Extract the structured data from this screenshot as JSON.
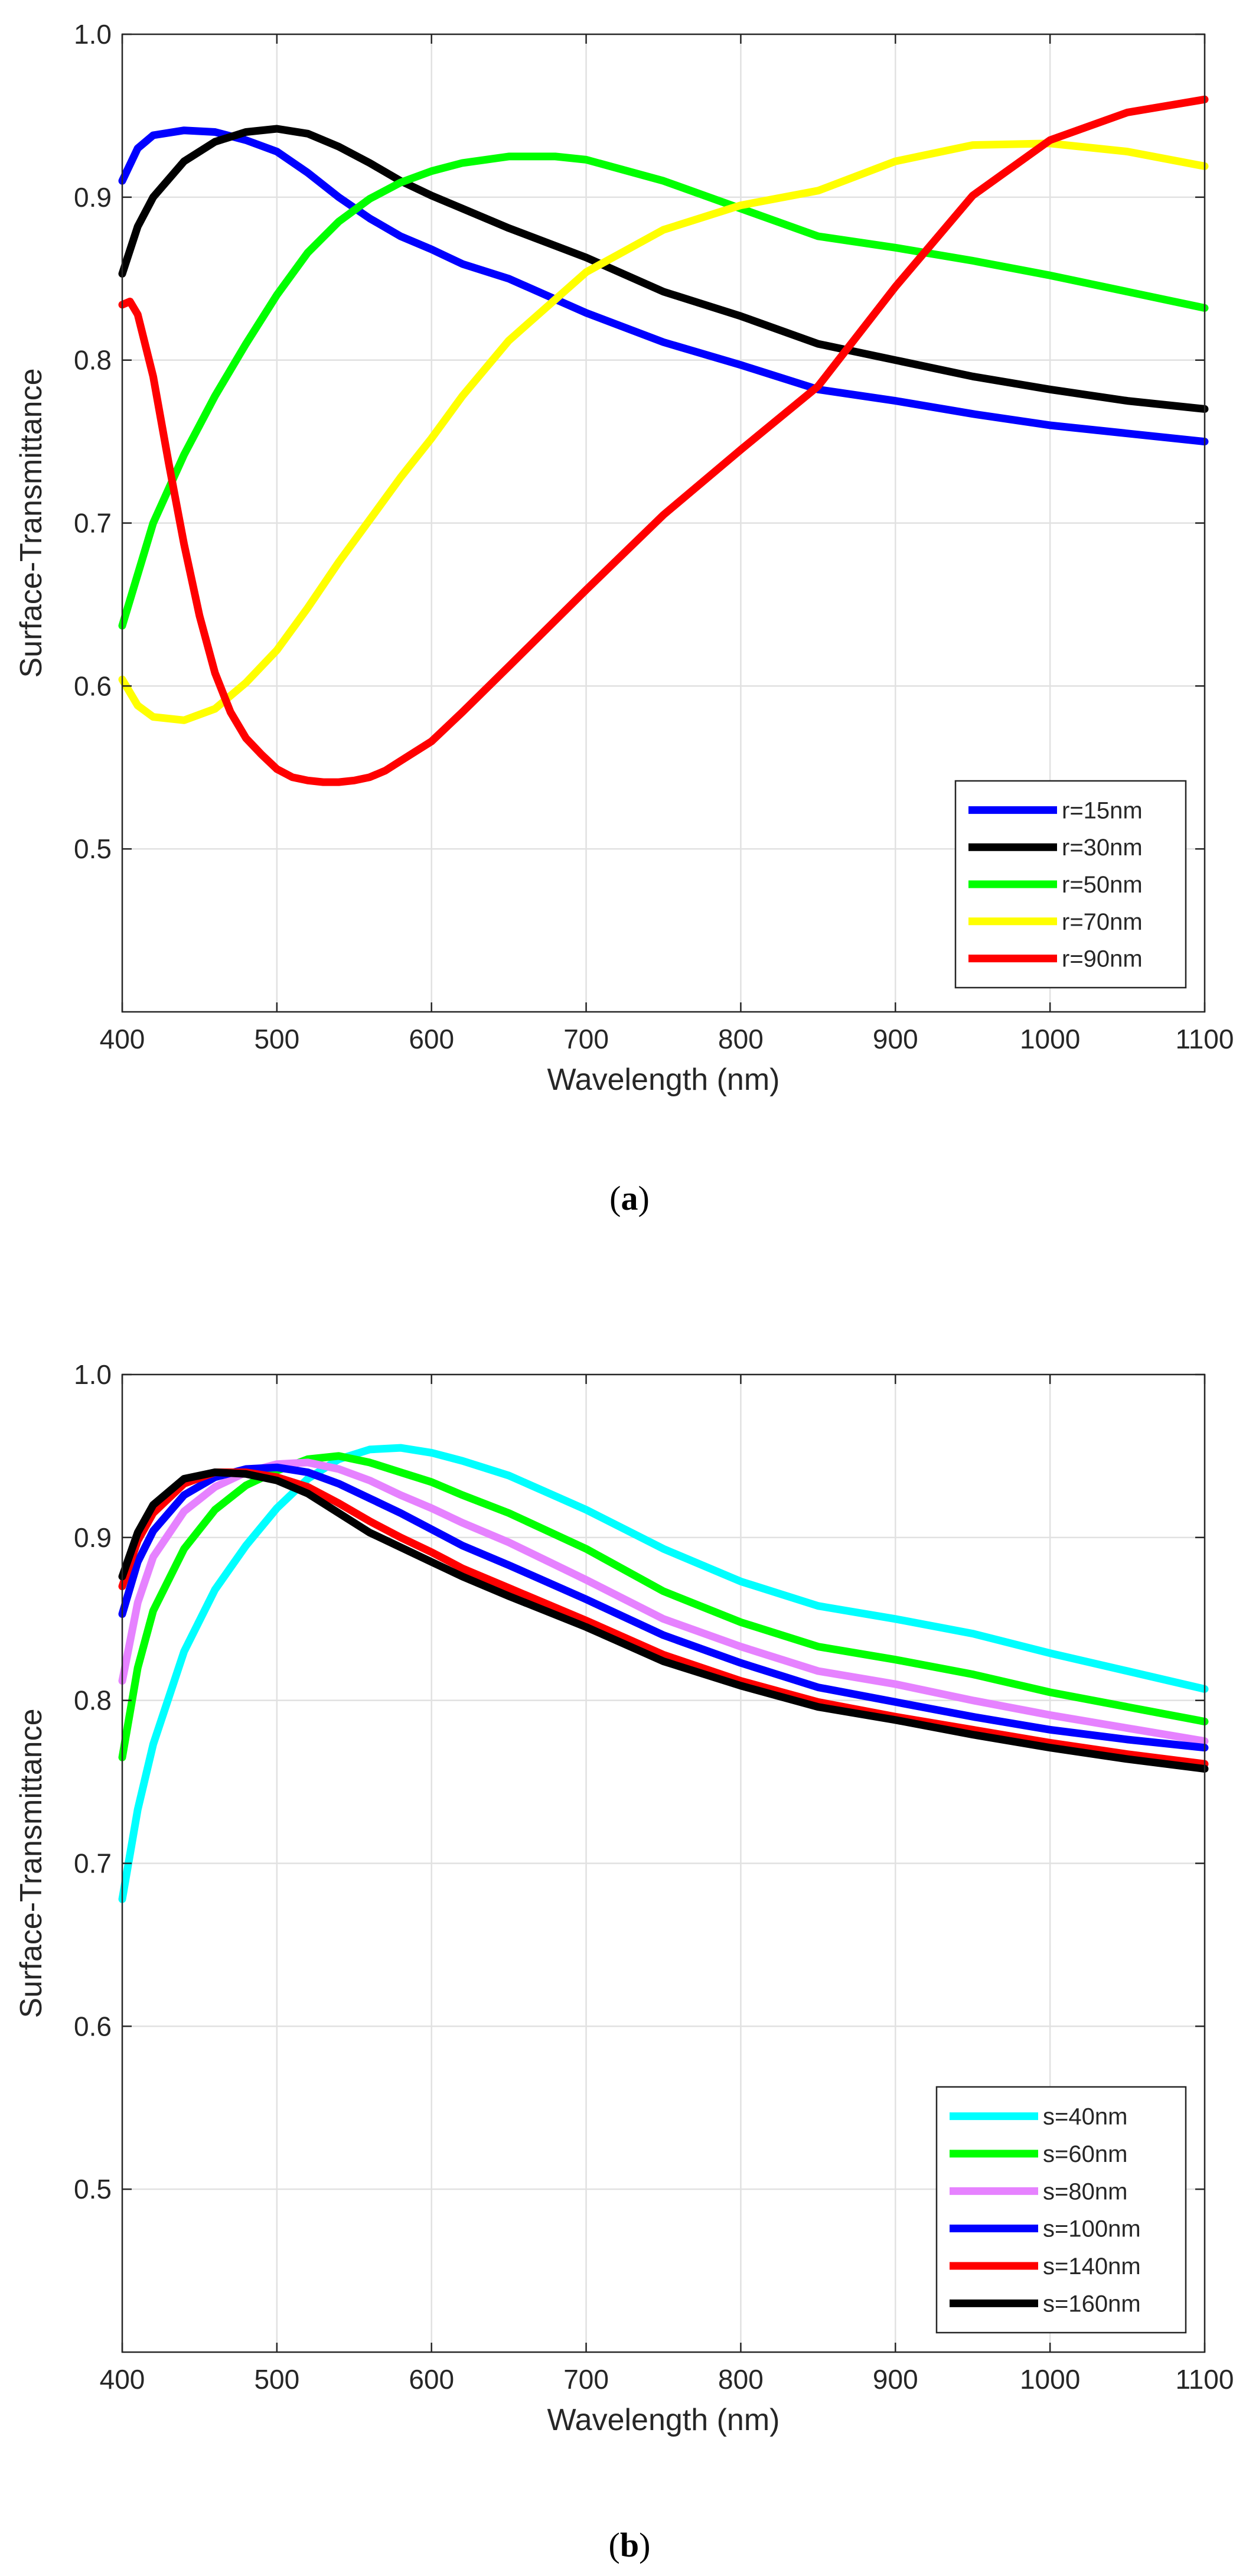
{
  "chart_data": [
    {
      "id": "a",
      "type": "line",
      "caption_letter": "a",
      "xlabel": "Wavelength (nm)",
      "ylabel": "Surface-Transmittance",
      "xlim": [
        400,
        1100
      ],
      "ylim": [
        0.4,
        1.0
      ],
      "xticks": [
        "400",
        "500",
        "600",
        "700",
        "800",
        "900",
        "1000",
        "1100"
      ],
      "yticks": [
        "0.5",
        "0.6",
        "0.7",
        "0.8",
        "0.9",
        "1.0"
      ],
      "grid": true,
      "legend_position": "bottom-right",
      "series": [
        {
          "name": "r=15nm",
          "color": "#0000ff",
          "x": [
            400,
            410,
            420,
            440,
            460,
            480,
            500,
            520,
            540,
            560,
            580,
            600,
            620,
            650,
            700,
            750,
            800,
            850,
            900,
            950,
            1000,
            1050,
            1100
          ],
          "y": [
            0.91,
            0.93,
            0.938,
            0.941,
            0.94,
            0.935,
            0.928,
            0.915,
            0.9,
            0.887,
            0.876,
            0.868,
            0.859,
            0.85,
            0.829,
            0.811,
            0.797,
            0.782,
            0.775,
            0.767,
            0.76,
            0.755,
            0.75
          ]
        },
        {
          "name": "r=30nm",
          "color": "#000000",
          "x": [
            400,
            410,
            420,
            440,
            460,
            480,
            500,
            520,
            540,
            560,
            580,
            600,
            620,
            650,
            700,
            750,
            800,
            850,
            900,
            950,
            1000,
            1050,
            1100
          ],
          "y": [
            0.853,
            0.882,
            0.9,
            0.922,
            0.934,
            0.94,
            0.942,
            0.939,
            0.931,
            0.921,
            0.91,
            0.901,
            0.893,
            0.881,
            0.863,
            0.842,
            0.827,
            0.81,
            0.8,
            0.79,
            0.782,
            0.775,
            0.77
          ]
        },
        {
          "name": "r=50nm",
          "color": "#00ff00",
          "x": [
            400,
            420,
            440,
            460,
            480,
            500,
            520,
            540,
            560,
            580,
            600,
            620,
            650,
            680,
            700,
            750,
            800,
            850,
            900,
            950,
            1000,
            1050,
            1100
          ],
          "y": [
            0.637,
            0.7,
            0.742,
            0.778,
            0.81,
            0.84,
            0.866,
            0.885,
            0.899,
            0.909,
            0.916,
            0.921,
            0.925,
            0.925,
            0.923,
            0.91,
            0.893,
            0.876,
            0.869,
            0.861,
            0.852,
            0.842,
            0.832
          ]
        },
        {
          "name": "r=70nm",
          "color": "#ffff00",
          "x": [
            400,
            410,
            420,
            440,
            460,
            480,
            500,
            520,
            540,
            560,
            580,
            600,
            620,
            650,
            700,
            750,
            800,
            850,
            900,
            950,
            1000,
            1050,
            1100
          ],
          "y": [
            0.604,
            0.588,
            0.581,
            0.579,
            0.586,
            0.602,
            0.622,
            0.648,
            0.676,
            0.702,
            0.728,
            0.752,
            0.778,
            0.812,
            0.854,
            0.88,
            0.895,
            0.904,
            0.922,
            0.932,
            0.933,
            0.928,
            0.919
          ]
        },
        {
          "name": "r=90nm",
          "color": "#ff0000",
          "x": [
            400,
            405,
            410,
            420,
            430,
            440,
            450,
            460,
            470,
            480,
            490,
            500,
            510,
            520,
            530,
            540,
            550,
            560,
            570,
            580,
            600,
            620,
            650,
            700,
            750,
            800,
            850,
            900,
            950,
            1000,
            1050,
            1100
          ],
          "y": [
            0.834,
            0.836,
            0.828,
            0.79,
            0.737,
            0.687,
            0.643,
            0.608,
            0.584,
            0.568,
            0.558,
            0.549,
            0.544,
            0.542,
            0.541,
            0.541,
            0.542,
            0.544,
            0.548,
            0.554,
            0.566,
            0.584,
            0.612,
            0.659,
            0.705,
            0.745,
            0.784,
            0.845,
            0.901,
            0.935,
            0.952,
            0.96
          ]
        }
      ]
    },
    {
      "id": "b",
      "type": "line",
      "caption_letter": "b",
      "xlabel": "Wavelength (nm)",
      "ylabel": "Surface-Transmittance",
      "xlim": [
        400,
        1100
      ],
      "ylim": [
        0.4,
        1.0
      ],
      "xticks": [
        "400",
        "500",
        "600",
        "700",
        "800",
        "900",
        "1000",
        "1100"
      ],
      "yticks": [
        "0.5",
        "0.6",
        "0.7",
        "0.8",
        "0.9",
        "1.0"
      ],
      "grid": true,
      "legend_position": "bottom-right",
      "series": [
        {
          "name": "s=40nm",
          "color": "#00ffff",
          "x": [
            400,
            410,
            420,
            440,
            460,
            480,
            500,
            520,
            540,
            560,
            580,
            600,
            620,
            650,
            700,
            750,
            800,
            850,
            900,
            950,
            1000,
            1050,
            1100
          ],
          "y": [
            0.678,
            0.733,
            0.773,
            0.83,
            0.868,
            0.895,
            0.918,
            0.936,
            0.948,
            0.954,
            0.955,
            0.952,
            0.947,
            0.938,
            0.917,
            0.893,
            0.873,
            0.858,
            0.85,
            0.841,
            0.829,
            0.818,
            0.807
          ]
        },
        {
          "name": "s=60nm",
          "color": "#00ff00",
          "x": [
            400,
            410,
            420,
            440,
            460,
            480,
            500,
            520,
            540,
            560,
            580,
            600,
            620,
            650,
            700,
            750,
            800,
            850,
            900,
            950,
            1000,
            1050,
            1100
          ],
          "y": [
            0.765,
            0.82,
            0.855,
            0.893,
            0.917,
            0.932,
            0.941,
            0.948,
            0.95,
            0.946,
            0.94,
            0.934,
            0.926,
            0.915,
            0.893,
            0.867,
            0.848,
            0.833,
            0.825,
            0.816,
            0.805,
            0.796,
            0.787
          ]
        },
        {
          "name": "s=80nm",
          "color": "#e682ff",
          "x": [
            400,
            410,
            420,
            440,
            460,
            480,
            500,
            520,
            540,
            560,
            580,
            600,
            620,
            650,
            700,
            750,
            800,
            850,
            900,
            950,
            1000,
            1050,
            1100
          ],
          "y": [
            0.812,
            0.86,
            0.888,
            0.916,
            0.931,
            0.94,
            0.945,
            0.946,
            0.942,
            0.935,
            0.926,
            0.918,
            0.909,
            0.897,
            0.874,
            0.85,
            0.833,
            0.818,
            0.81,
            0.8,
            0.791,
            0.783,
            0.775
          ]
        },
        {
          "name": "s=100nm",
          "color": "#0000ff",
          "x": [
            400,
            410,
            420,
            440,
            460,
            480,
            500,
            520,
            540,
            560,
            580,
            600,
            620,
            650,
            700,
            750,
            800,
            850,
            900,
            950,
            1000,
            1050,
            1100
          ],
          "y": [
            0.853,
            0.885,
            0.904,
            0.926,
            0.937,
            0.942,
            0.943,
            0.94,
            0.933,
            0.924,
            0.915,
            0.905,
            0.895,
            0.883,
            0.862,
            0.84,
            0.823,
            0.808,
            0.799,
            0.79,
            0.782,
            0.776,
            0.771
          ]
        },
        {
          "name": "s=140nm",
          "color": "#ff0000",
          "x": [
            400,
            410,
            420,
            440,
            460,
            480,
            500,
            520,
            540,
            560,
            580,
            600,
            620,
            650,
            700,
            750,
            800,
            850,
            900,
            950,
            1000,
            1050,
            1100
          ],
          "y": [
            0.87,
            0.898,
            0.915,
            0.933,
            0.94,
            0.94,
            0.937,
            0.931,
            0.921,
            0.91,
            0.9,
            0.891,
            0.881,
            0.869,
            0.849,
            0.828,
            0.812,
            0.799,
            0.79,
            0.782,
            0.774,
            0.767,
            0.761
          ]
        },
        {
          "name": "s=160nm",
          "color": "#000000",
          "x": [
            400,
            410,
            420,
            440,
            460,
            480,
            500,
            520,
            540,
            560,
            580,
            600,
            620,
            650,
            700,
            750,
            800,
            850,
            900,
            950,
            1000,
            1050,
            1100
          ],
          "y": [
            0.876,
            0.903,
            0.92,
            0.936,
            0.94,
            0.939,
            0.935,
            0.927,
            0.915,
            0.903,
            0.894,
            0.885,
            0.876,
            0.864,
            0.845,
            0.824,
            0.809,
            0.796,
            0.788,
            0.779,
            0.771,
            0.764,
            0.758
          ]
        }
      ]
    }
  ]
}
